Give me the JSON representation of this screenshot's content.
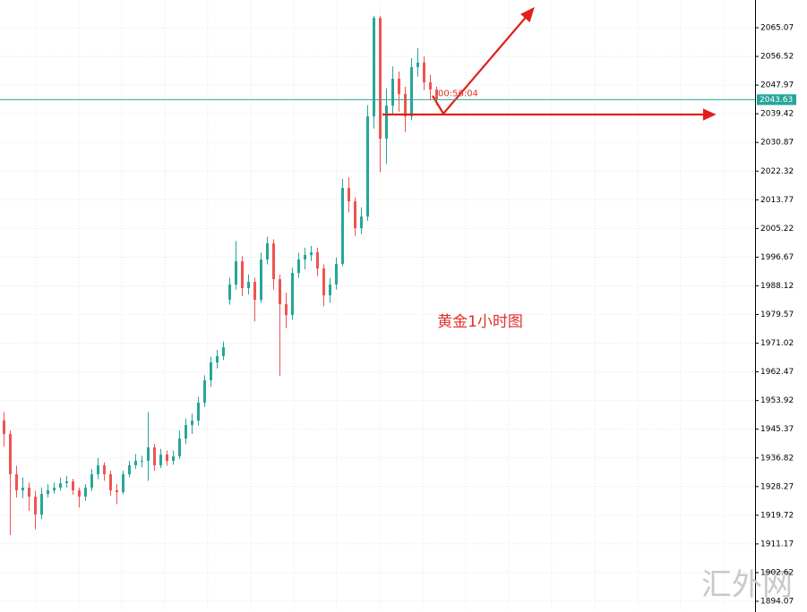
{
  "chart_data": {
    "type": "candlestick",
    "annotation": "黄金1小时图",
    "watermark": "汇外网",
    "timer": "00:56:04",
    "current_price": 2043.63,
    "up_color": "#26a69a",
    "down_color": "#ef5350",
    "ylim": [
      1890.87,
      2073.34
    ],
    "yticks": [
      2065.07,
      2056.52,
      2047.97,
      2039.42,
      2030.87,
      2022.32,
      2013.77,
      2005.22,
      1996.67,
      1988.12,
      1979.57,
      1971.02,
      1962.47,
      1953.92,
      1945.37,
      1936.82,
      1928.27,
      1919.72,
      1911.17,
      1902.62,
      1894.07
    ],
    "grid": true,
    "open": [
      1948.0,
      1943.94,
      1931.93,
      1927.13,
      1927.93,
      1925.26,
      1919.93,
      1926.06,
      1927.13,
      1927.93,
      1929.26,
      1929.8,
      1927.13,
      1925.26,
      1927.93,
      1931.93,
      1934.6,
      1931.93,
      1927.13,
      1926.59,
      1931.93,
      1934.6,
      1935.93,
      1935.93,
      1939.94,
      1934.6,
      1937.8,
      1935.93,
      1937.27,
      1942.6,
      1946.61,
      1947.94,
      1953.28,
      1959.95,
      1965.28,
      1967.15,
      1984.0,
      1988.5,
      1995.43,
      1987.43,
      1989.3,
      1983.96,
      1995.97,
      2000.77,
      1990.1,
      1982.63,
      1979.42,
      1991.97,
      1995.97,
      1997.3,
      1998.1,
      1993.3,
      1985.29,
      1988.5,
      1994.63,
      2017.31,
      2013.31,
      2005.3,
      2008.77,
      2038.66,
      2068.0,
      2031.99,
      2041.86,
      2049.86,
      2045.33,
      2038.66,
      2053.33,
      2054.66,
      2048.8,
      2046.66
    ],
    "high": [
      1950.5,
      1945.0,
      1934.5,
      1931.0,
      1929.5,
      1927.0,
      1928.0,
      1929.0,
      1929.5,
      1931.0,
      1931.5,
      1930.6,
      1928.0,
      1929.0,
      1933.5,
      1936.8,
      1935.5,
      1933.0,
      1929.0,
      1933.0,
      1936.0,
      1938.0,
      1937.5,
      1950.5,
      1941.0,
      1939.5,
      1939.0,
      1939.0,
      1945.0,
      1948.5,
      1950.0,
      1955.0,
      1961.5,
      1967.0,
      1969.0,
      1971.5,
      1990.5,
      2001.5,
      1997.0,
      1991.5,
      1990.5,
      1998.0,
      2002.7,
      2002.0,
      1991.5,
      1986.0,
      1993.5,
      1998.0,
      1999.5,
      2000.0,
      1999.5,
      1994.5,
      1990.5,
      1996.5,
      2020.0,
      2020.5,
      2014.5,
      2011.5,
      2042.0,
      2068.6,
      2068.6,
      2047.0,
      2053.5,
      2052.0,
      2047.5,
      2056.0,
      2059.0,
      2056.5,
      2051.0,
      2047.5
    ],
    "low": [
      1940.2,
      1913.8,
      1925.0,
      1924.8,
      1921.0,
      1915.5,
      1918.5,
      1925.0,
      1926.2,
      1927.0,
      1928.0,
      1925.8,
      1922.0,
      1924.0,
      1927.0,
      1930.5,
      1930.0,
      1925.5,
      1923.0,
      1926.0,
      1931.0,
      1933.5,
      1934.0,
      1930.0,
      1933.0,
      1933.8,
      1934.5,
      1934.8,
      1936.5,
      1941.0,
      1944.0,
      1946.5,
      1952.0,
      1958.0,
      1963.5,
      1966.0,
      1982.5,
      1987.0,
      1985.0,
      1985.5,
      1977.5,
      1983.0,
      1994.5,
      1987.0,
      1961.3,
      1975.5,
      1978.0,
      1990.5,
      1993.0,
      1995.5,
      1991.0,
      1982.0,
      1983.0,
      1987.0,
      1994.0,
      2010.0,
      2003.0,
      2003.5,
      2007.5,
      2035.0,
      2022.0,
      2024.5,
      2039.0,
      2040.0,
      2034.0,
      2037.5,
      2050.5,
      2046.5,
      2043.5,
      2042.0
    ],
    "close": [
      1943.94,
      1931.93,
      1927.13,
      1927.93,
      1925.26,
      1919.93,
      1926.06,
      1927.13,
      1927.93,
      1929.26,
      1929.8,
      1927.13,
      1925.26,
      1927.93,
      1931.93,
      1934.6,
      1931.93,
      1927.13,
      1926.59,
      1931.93,
      1934.6,
      1935.93,
      1935.93,
      1939.94,
      1934.6,
      1937.8,
      1935.93,
      1937.27,
      1942.6,
      1946.61,
      1947.94,
      1953.28,
      1959.95,
      1965.28,
      1967.15,
      1969.82,
      1988.5,
      1995.43,
      1987.43,
      1989.3,
      1983.96,
      1995.97,
      2000.77,
      1990.1,
      1982.63,
      1979.42,
      1991.97,
      1995.97,
      1997.3,
      1998.1,
      1993.3,
      1985.29,
      1988.5,
      1994.63,
      2017.31,
      2013.31,
      2005.3,
      2008.77,
      2038.66,
      2068.0,
      2031.99,
      2041.86,
      2049.86,
      2045.33,
      2038.66,
      2053.33,
      2054.66,
      2048.8,
      2046.66,
      2043.63
    ]
  }
}
